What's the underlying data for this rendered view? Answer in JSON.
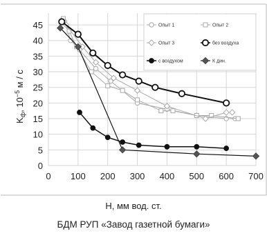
{
  "chart_data": {
    "type": "line",
    "xlabel": "H, мм вод. ст.",
    "ylabel": "Kф, 10⁻⁵ м / с",
    "ylabel_parts": {
      "base": "K",
      "sub": "ф",
      "mid": ", 10",
      "sup": "−5",
      "tail": " м / с"
    },
    "caption": "БДМ РУП «Завод газетной бумаги»",
    "xlim": [
      0,
      700
    ],
    "ylim": [
      0,
      47
    ],
    "xticks": [
      "0",
      "100",
      "200",
      "300",
      "400",
      "500",
      "600",
      "700"
    ],
    "yticks": [
      "0",
      "5",
      "10",
      "15",
      "20",
      "25",
      "30",
      "35",
      "40",
      "45"
    ],
    "grid": true,
    "legend_position": "top-right",
    "series": [
      {
        "name": "Опыт 1",
        "color": "#a8a8a8",
        "marker": "open-circle",
        "width": 1,
        "x": [
          55,
          75,
          105,
          160,
          210,
          300,
          400,
          500,
          600,
          630
        ],
        "y": [
          46,
          40,
          37,
          31,
          27,
          20,
          18,
          16,
          15,
          15
        ]
      },
      {
        "name": "Опыт 2",
        "color": "#a8a8a8",
        "marker": "open-square",
        "width": 1,
        "x": [
          50,
          70,
          95,
          145,
          200,
          250,
          300,
          380,
          420,
          500,
          550,
          640
        ],
        "y": [
          47,
          43,
          38,
          30,
          25.5,
          24,
          21,
          17.5,
          17.5,
          16,
          16,
          15
        ]
      },
      {
        "name": "Опыт 3",
        "color": "#a8a8a8",
        "marker": "open-diamond",
        "width": 1,
        "x": [
          60,
          115,
          160,
          220,
          300,
          400,
          530,
          600,
          620
        ],
        "y": [
          45,
          38,
          33,
          28,
          24,
          19,
          15,
          17,
          17
        ]
      },
      {
        "name": "без воздуха",
        "color": "#111111",
        "marker": "open-circle-bold",
        "width": 2,
        "x": [
          45,
          100,
          150,
          200,
          250,
          305,
          360,
          450,
          600
        ],
        "y": [
          46,
          42,
          36,
          32,
          29,
          27,
          25,
          23,
          20
        ]
      },
      {
        "name": "с воздухом",
        "color": "#111111",
        "marker": "filled-circle",
        "width": 1.5,
        "x": [
          105,
          150,
          200,
          250,
          305,
          400,
          500,
          600
        ],
        "y": [
          17,
          12,
          9,
          7.5,
          6.5,
          6,
          6,
          5.5
        ]
      },
      {
        "name": "К дин.",
        "color": "#111111",
        "marker": "filled-diamond",
        "width": 1.2,
        "x": [
          40,
          100,
          250,
          500,
          700
        ],
        "y": [
          44,
          38,
          5,
          3.7,
          3
        ]
      }
    ]
  }
}
